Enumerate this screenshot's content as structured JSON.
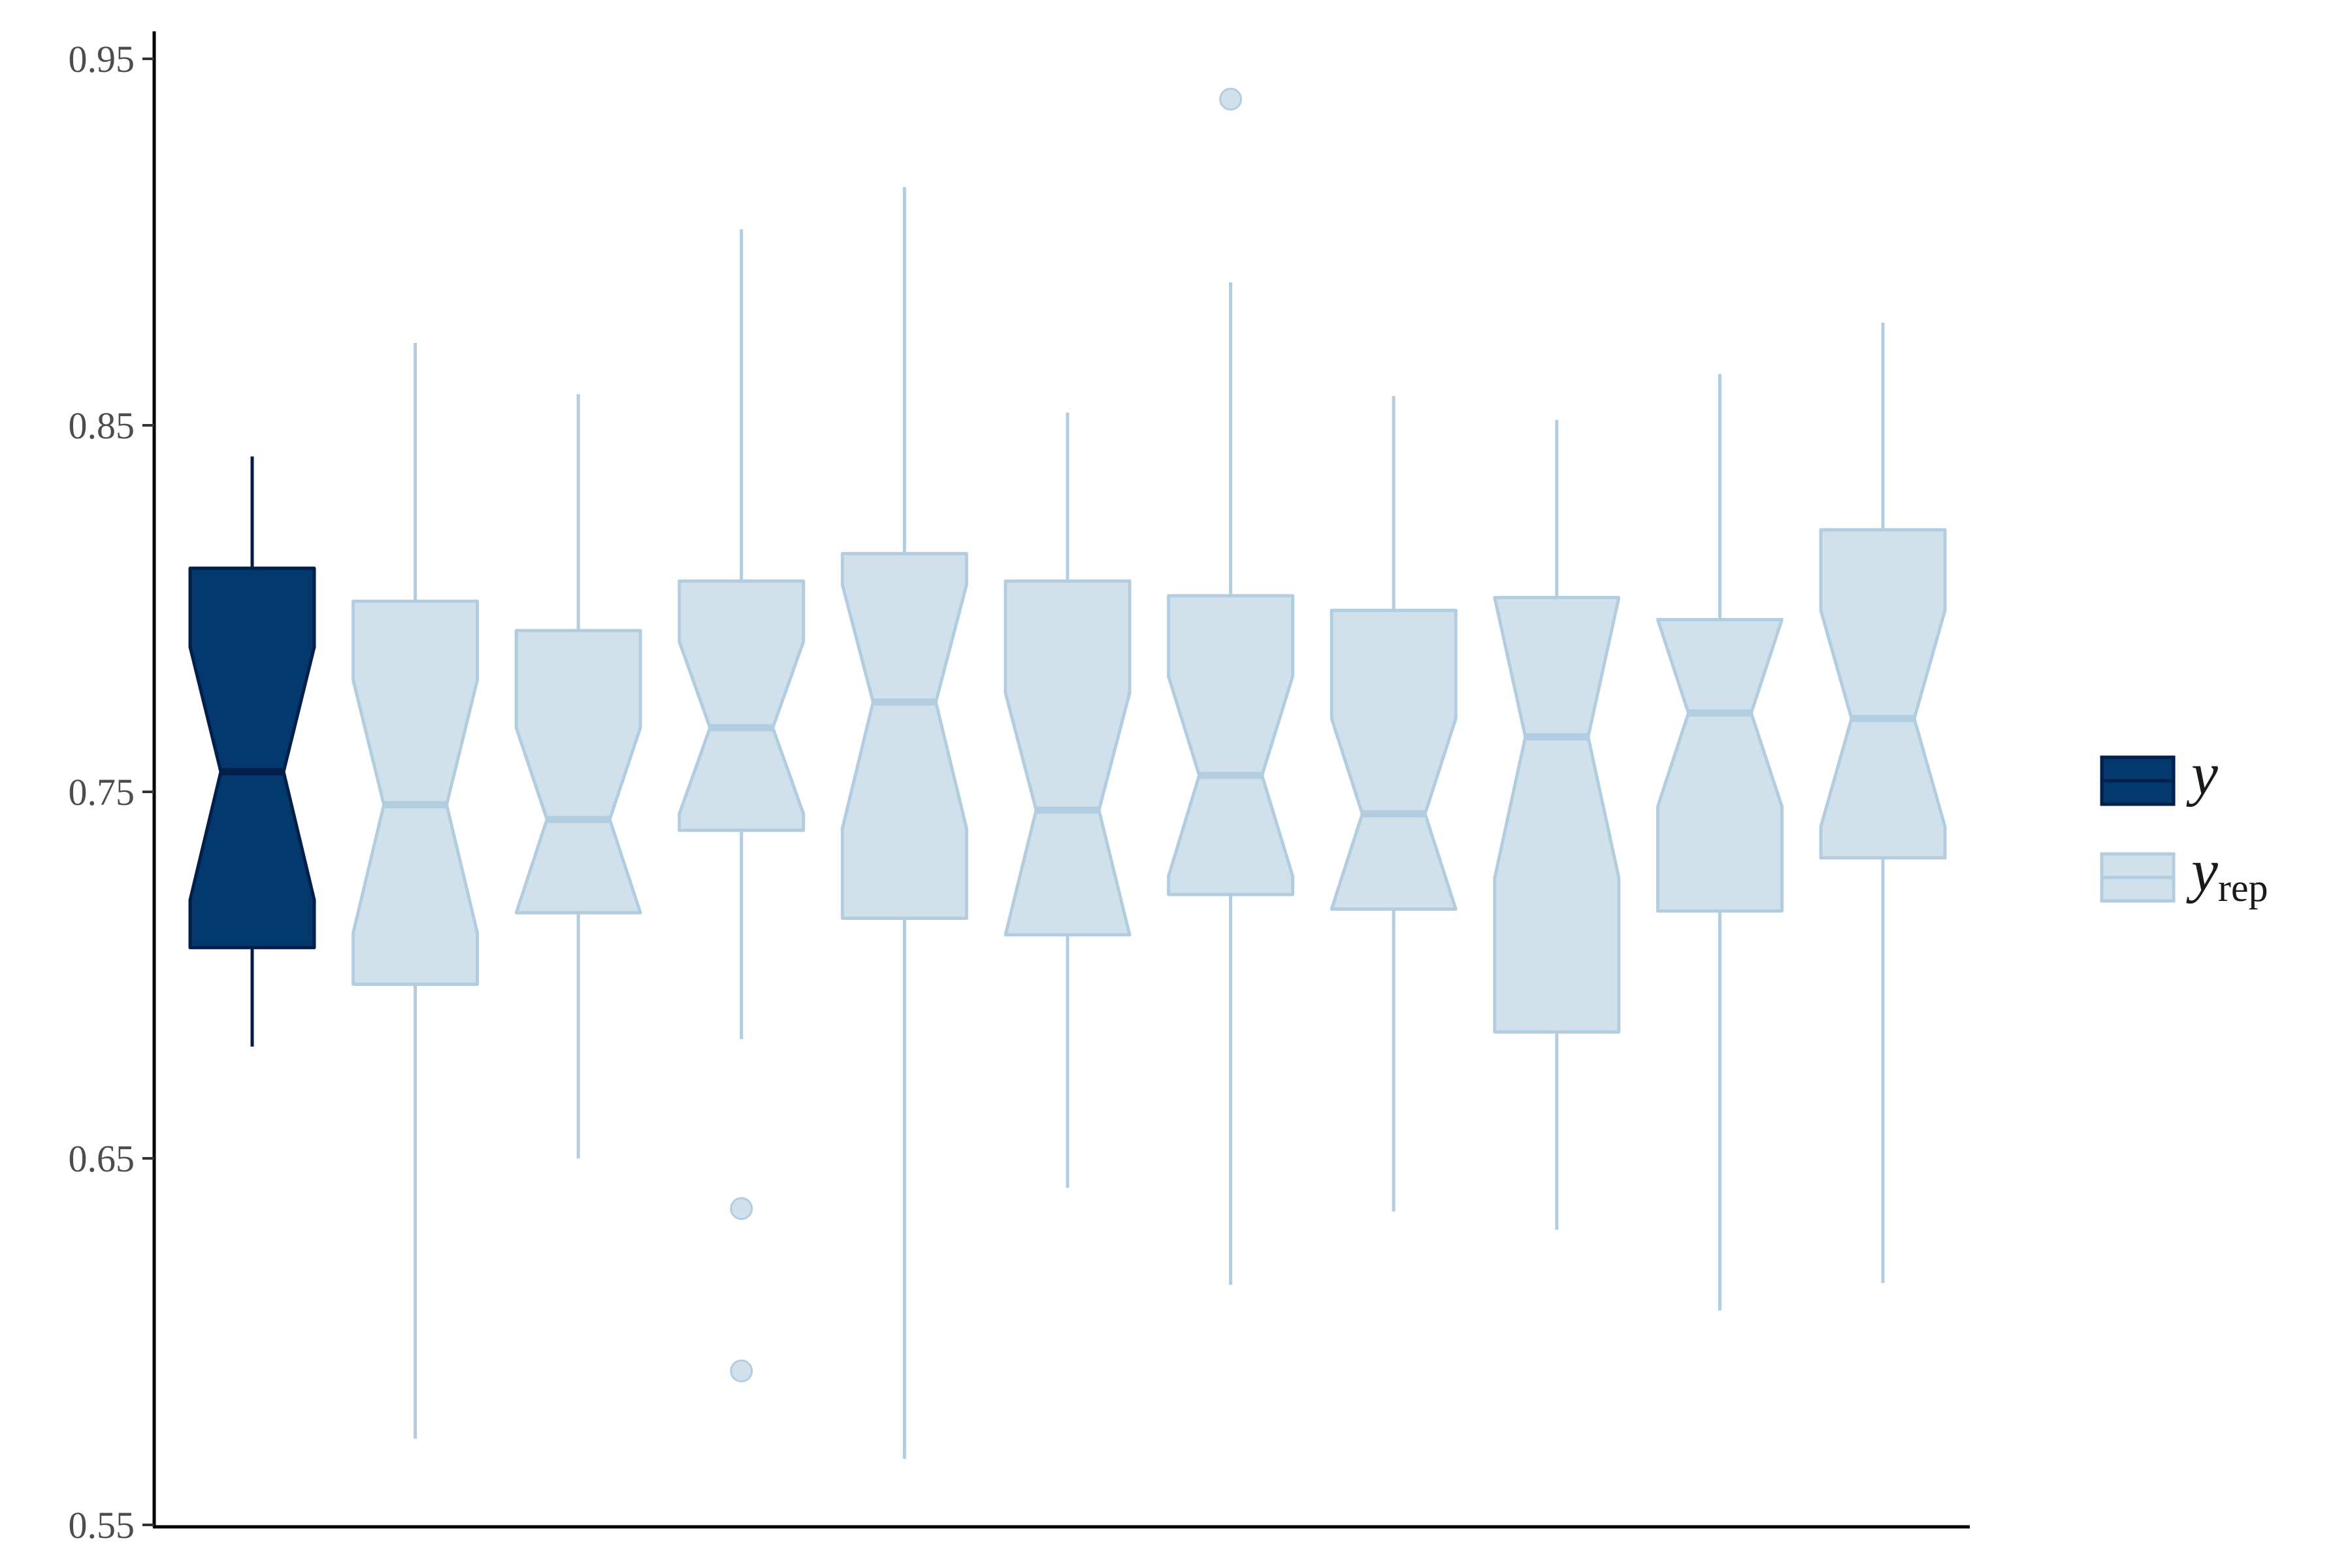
{
  "chart_data": {
    "type": "boxplot",
    "notched": true,
    "title": "",
    "xlabel": "",
    "ylabel": "",
    "ylim": [
      0.55,
      0.957
    ],
    "yticks": [
      "0.55",
      "0.65",
      "0.75",
      "0.85",
      "0.95"
    ],
    "ytick_values": [
      0.55,
      0.65,
      0.75,
      0.85,
      0.95
    ],
    "grid": false,
    "legend_position": "right",
    "colors": {
      "y": "#03396c",
      "y_edge": "#011f4b",
      "yrep_fill": "#d1e1ec",
      "yrep_edge": "#b3cde0"
    },
    "legend": [
      {
        "key": "y",
        "label": "y",
        "sub": ""
      },
      {
        "key": "yrep",
        "label": "y",
        "sub": "rep"
      }
    ],
    "series": [
      {
        "group": "y",
        "q1": 0.7075,
        "median": 0.7555,
        "q3": 0.811,
        "notch_lo": 0.7205,
        "notch_hi": 0.7895,
        "whisker_lo": 0.6805,
        "whisker_hi": 0.8415,
        "outliers": []
      },
      {
        "group": "yrep",
        "q1": 0.6975,
        "median": 0.7465,
        "q3": 0.802,
        "notch_lo": 0.7115,
        "notch_hi": 0.7805,
        "whisker_lo": 0.5735,
        "whisker_hi": 0.8725,
        "outliers": []
      },
      {
        "group": "yrep",
        "q1": 0.717,
        "median": 0.7425,
        "q3": 0.794,
        "notch_lo": 0.717,
        "notch_hi": 0.7675,
        "whisker_lo": 0.65,
        "whisker_hi": 0.8585,
        "outliers": []
      },
      {
        "group": "yrep",
        "q1": 0.7395,
        "median": 0.7675,
        "q3": 0.8075,
        "notch_lo": 0.744,
        "notch_hi": 0.791,
        "whisker_lo": 0.6825,
        "whisker_hi": 0.9035,
        "outliers": [
          0.6363,
          0.592
        ]
      },
      {
        "group": "yrep",
        "q1": 0.7155,
        "median": 0.7745,
        "q3": 0.815,
        "notch_lo": 0.74,
        "notch_hi": 0.8065,
        "whisker_lo": 0.568,
        "whisker_hi": 0.915,
        "outliers": []
      },
      {
        "group": "yrep",
        "q1": 0.711,
        "median": 0.745,
        "q3": 0.8075,
        "notch_lo": 0.711,
        "notch_hi": 0.777,
        "whisker_lo": 0.642,
        "whisker_hi": 0.8535,
        "outliers": []
      },
      {
        "group": "yrep",
        "q1": 0.722,
        "median": 0.7545,
        "q3": 0.8035,
        "notch_lo": 0.727,
        "notch_hi": 0.7815,
        "whisker_lo": 0.6155,
        "whisker_hi": 0.889,
        "outliers": [
          0.939
        ]
      },
      {
        "group": "yrep",
        "q1": 0.718,
        "median": 0.744,
        "q3": 0.7995,
        "notch_lo": 0.718,
        "notch_hi": 0.77,
        "whisker_lo": 0.6355,
        "whisker_hi": 0.858,
        "outliers": []
      },
      {
        "group": "yrep",
        "q1": 0.6845,
        "median": 0.765,
        "q3": 0.803,
        "notch_lo": 0.7265,
        "notch_hi": 0.803,
        "whisker_lo": 0.6305,
        "whisker_hi": 0.8515,
        "outliers": []
      },
      {
        "group": "yrep",
        "q1": 0.7175,
        "median": 0.7715,
        "q3": 0.797,
        "notch_lo": 0.746,
        "notch_hi": 0.797,
        "whisker_lo": 0.6085,
        "whisker_hi": 0.864,
        "outliers": []
      },
      {
        "group": "yrep",
        "q1": 0.732,
        "median": 0.77,
        "q3": 0.8215,
        "notch_lo": 0.7405,
        "notch_hi": 0.7995,
        "whisker_lo": 0.616,
        "whisker_hi": 0.878,
        "outliers": []
      }
    ]
  }
}
